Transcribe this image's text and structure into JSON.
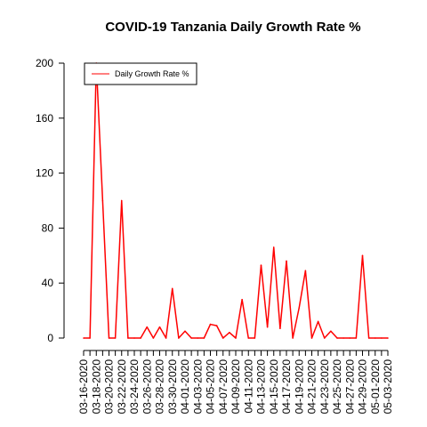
{
  "chart_data": {
    "type": "line",
    "title": "COVID-19 Tanzania Daily Growth Rate %",
    "xlabel": "",
    "ylabel": "",
    "ylim": [
      0,
      200
    ],
    "yticks": [
      0,
      40,
      80,
      120,
      160,
      200
    ],
    "legend": {
      "position": "top-left",
      "entries": [
        "Daily Growth Rate %"
      ]
    },
    "grid": false,
    "x": [
      "03-16-2020",
      "03-17-2020",
      "03-18-2020",
      "03-19-2020",
      "03-20-2020",
      "03-21-2020",
      "03-22-2020",
      "03-23-2020",
      "03-24-2020",
      "03-25-2020",
      "03-26-2020",
      "03-27-2020",
      "03-28-2020",
      "03-29-2020",
      "03-30-2020",
      "03-31-2020",
      "04-01-2020",
      "04-02-2020",
      "04-03-2020",
      "04-04-2020",
      "04-05-2020",
      "04-06-2020",
      "04-07-2020",
      "04-08-2020",
      "04-09-2020",
      "04-10-2020",
      "04-11-2020",
      "04-12-2020",
      "04-13-2020",
      "04-14-2020",
      "04-15-2020",
      "04-16-2020",
      "04-17-2020",
      "04-18-2020",
      "04-19-2020",
      "04-20-2020",
      "04-21-2020",
      "04-22-2020",
      "04-23-2020",
      "04-24-2020",
      "04-25-2020",
      "04-26-2020",
      "04-27-2020",
      "04-28-2020",
      "04-29-2020",
      "04-30-2020",
      "05-01-2020",
      "05-02-2020",
      "05-03-2020"
    ],
    "xtick_labels": [
      "03-16-2020",
      "03-18-2020",
      "03-20-2020",
      "03-22-2020",
      "03-24-2020",
      "03-26-2020",
      "03-28-2020",
      "03-30-2020",
      "04-01-2020",
      "04-03-2020",
      "04-05-2020",
      "04-07-2020",
      "04-09-2020",
      "04-11-2020",
      "04-13-2020",
      "04-15-2020",
      "04-17-2020",
      "04-19-2020",
      "04-21-2020",
      "04-23-2020",
      "04-25-2020",
      "04-27-2020",
      "04-29-2020",
      "05-01-2020",
      "05-03-2020"
    ],
    "series": [
      {
        "name": "Daily Growth Rate %",
        "color": "#ff0000",
        "values": [
          0,
          0,
          200,
          100,
          0,
          0,
          100,
          0,
          0,
          0,
          8,
          0,
          8,
          0,
          36,
          0,
          5,
          0,
          0,
          0,
          10,
          9,
          0,
          4,
          0,
          28,
          0,
          0,
          53,
          8,
          66,
          7,
          56,
          0,
          22,
          49,
          0,
          12,
          0,
          5,
          0,
          0,
          0,
          0,
          60,
          0,
          0,
          0,
          0
        ]
      }
    ]
  }
}
